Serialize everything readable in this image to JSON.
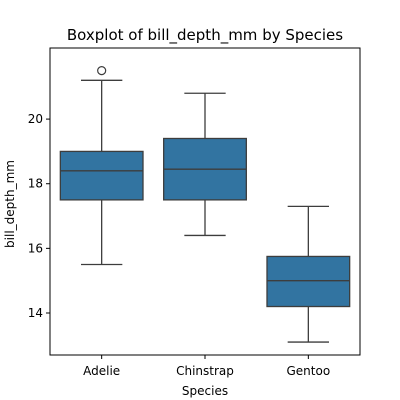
{
  "chart_data": {
    "type": "boxplot",
    "title": "Boxplot of bill_depth_mm by Species",
    "xlabel": "Species",
    "ylabel": "bill_depth_mm",
    "categories": [
      "Adelie",
      "Chinstrap",
      "Gentoo"
    ],
    "boxes": [
      {
        "category": "Adelie",
        "whisker_low": 15.5,
        "q1": 17.5,
        "median": 18.4,
        "q3": 19.0,
        "whisker_high": 21.2,
        "outliers": [
          21.5
        ]
      },
      {
        "category": "Chinstrap",
        "whisker_low": 16.4,
        "q1": 17.5,
        "median": 18.45,
        "q3": 19.4,
        "whisker_high": 20.8,
        "outliers": []
      },
      {
        "category": "Gentoo",
        "whisker_low": 13.1,
        "q1": 14.2,
        "median": 15.0,
        "q3": 15.75,
        "whisker_high": 17.3,
        "outliers": []
      }
    ],
    "yticks": [
      14,
      16,
      18,
      20
    ],
    "ylim": [
      12.7,
      22.2
    ],
    "grid": false,
    "colors": {
      "box_fill": "#3274a1",
      "line": "#3d3d3d",
      "axis": "#000000",
      "background": "#ffffff"
    }
  }
}
